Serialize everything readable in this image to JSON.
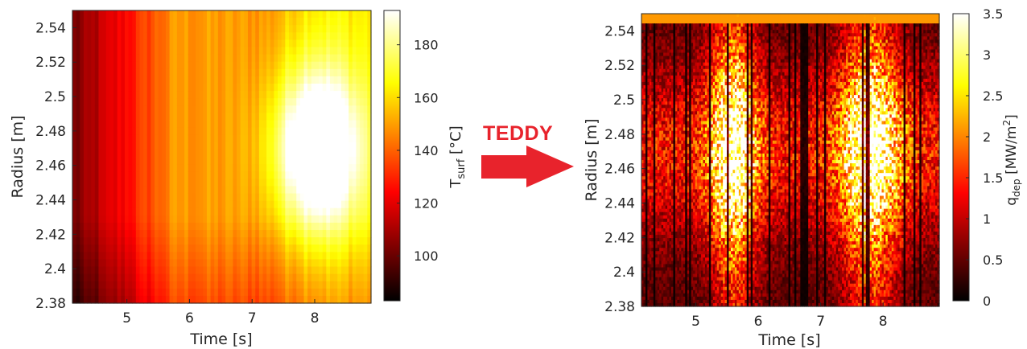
{
  "chart_data": [
    {
      "type": "heatmap",
      "xlabel": "Time [s]",
      "ylabel": "Radius [m]",
      "xlim": [
        4.13,
        8.9
      ],
      "ylim": [
        2.38,
        2.55
      ],
      "x_ticks": [
        "5",
        "6",
        "7",
        "8"
      ],
      "x_tick_values": [
        5,
        6,
        7,
        8
      ],
      "y_ticks": [
        "2.38",
        "2.4",
        "2.42",
        "2.44",
        "2.46",
        "2.48",
        "2.5",
        "2.52",
        "2.54"
      ],
      "y_tick_values": [
        2.38,
        2.4,
        2.42,
        2.44,
        2.46,
        2.48,
        2.5,
        2.52,
        2.54
      ],
      "colorbar": {
        "label": "T",
        "label_sub": "surf",
        "label_unit": " [°C]",
        "range": [
          83,
          193
        ],
        "ticks": [
          "100",
          "120",
          "140",
          "160",
          "180"
        ],
        "tick_values": [
          100,
          120,
          140,
          160,
          180
        ]
      },
      "colormap": "hot",
      "hotspot": {
        "time": 8.05,
        "radius": 2.47,
        "peak": 193
      }
    },
    {
      "type": "heatmap",
      "xlabel": "Time [s]",
      "ylabel": "Radius [m]",
      "xlim": [
        4.13,
        8.9
      ],
      "ylim": [
        2.38,
        2.55
      ],
      "x_ticks": [
        "5",
        "6",
        "7",
        "8"
      ],
      "x_tick_values": [
        5,
        6,
        7,
        8
      ],
      "y_ticks": [
        "2.38",
        "2.4",
        "2.42",
        "2.44",
        "2.46",
        "2.48",
        "2.5",
        "2.52",
        "2.54"
      ],
      "y_tick_values": [
        2.38,
        2.4,
        2.42,
        2.44,
        2.46,
        2.48,
        2.5,
        2.52,
        2.54
      ],
      "colorbar": {
        "label": "q",
        "label_sub": "dep",
        "label_unit": " [MW/m",
        "label_sup": "2",
        "label_end": "]",
        "range": [
          0,
          3.5
        ],
        "ticks": [
          "0",
          "0.5",
          "1",
          "1.5",
          "2",
          "2.5",
          "3",
          "3.5"
        ],
        "tick_values": [
          0,
          0.5,
          1,
          1.5,
          2,
          2.5,
          3,
          3.5
        ]
      },
      "colormap": "hot",
      "hotspot": {
        "time": 7.8,
        "radius": 2.47,
        "peak": 3.5
      }
    }
  ],
  "arrow": {
    "label": "TEDDY",
    "color": "#e8232c"
  }
}
